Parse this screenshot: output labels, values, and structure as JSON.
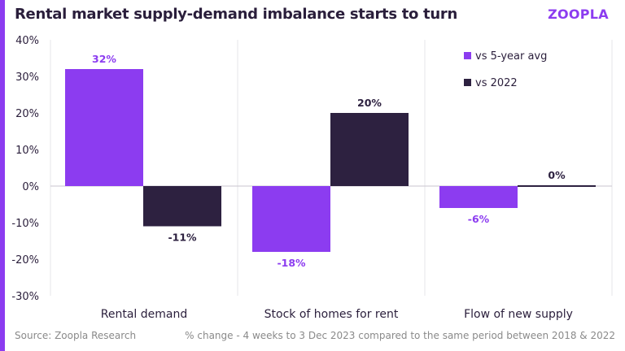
{
  "header": {
    "title": "Rental market supply-demand imbalance starts to turn",
    "logo": "ZOOPLA"
  },
  "footer": {
    "source": "Source: Zoopla Research",
    "note": "% change - 4 weeks to 3 Dec 2023 compared to the same period between 2018 & 2022"
  },
  "colors": {
    "accent": "#8c3cf0",
    "series_5yr": "#8c3cf0",
    "series_2022": "#2d2140",
    "text": "#2a1e3b"
  },
  "chart_data": {
    "type": "bar",
    "title": "Rental market supply-demand imbalance starts to turn",
    "categories": [
      "Rental demand",
      "Stock of homes for rent",
      "Flow of new supply"
    ],
    "series": [
      {
        "name": "vs 5-year avg",
        "values": [
          32,
          -18,
          -6
        ],
        "labels": [
          "32%",
          "-18%",
          "-6%"
        ]
      },
      {
        "name": "vs 2022",
        "values": [
          -11,
          20,
          0
        ],
        "labels": [
          "-11%",
          "20%",
          "0%"
        ]
      }
    ],
    "ylim": [
      -30,
      40
    ],
    "yticks": [
      "40%",
      "30%",
      "20%",
      "10%",
      "0%",
      "-10%",
      "-20%",
      "-30%"
    ],
    "ytick_values": [
      40,
      30,
      20,
      10,
      0,
      -10,
      -20,
      -30
    ],
    "legend_position": "top-right",
    "grid": false
  }
}
